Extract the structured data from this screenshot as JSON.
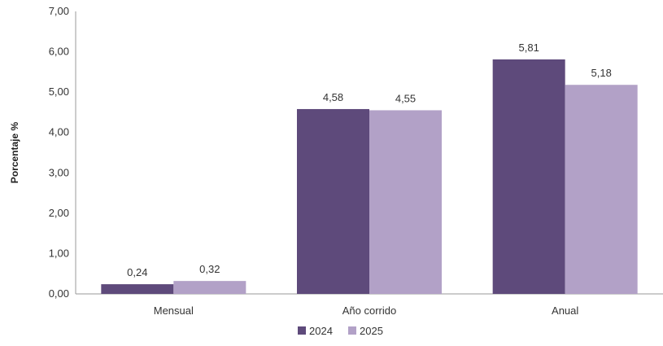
{
  "chart_data": {
    "type": "bar",
    "categories": [
      "Mensual",
      "Año corrido",
      "Anual"
    ],
    "series": [
      {
        "name": "2024",
        "values": [
          0.24,
          4.58,
          5.81
        ],
        "color": "#5e4a7b"
      },
      {
        "name": "2025",
        "values": [
          0.32,
          4.55,
          5.18
        ],
        "color": "#b2a1c7"
      }
    ],
    "value_labels": [
      [
        "0,24",
        "4,58",
        "5,81"
      ],
      [
        "0,32",
        "4,55",
        "5,18"
      ]
    ],
    "yticks": [
      0,
      1,
      2,
      3,
      4,
      5,
      6,
      7
    ],
    "ytick_labels": [
      "0,00",
      "1,00",
      "2,00",
      "3,00",
      "4,00",
      "5,00",
      "6,00",
      "7,00"
    ],
    "ylim": [
      0,
      7
    ],
    "title": "",
    "xlabel": "",
    "ylabel": "Porcentaje %",
    "grid": false,
    "legend_position": "bottom-center"
  }
}
